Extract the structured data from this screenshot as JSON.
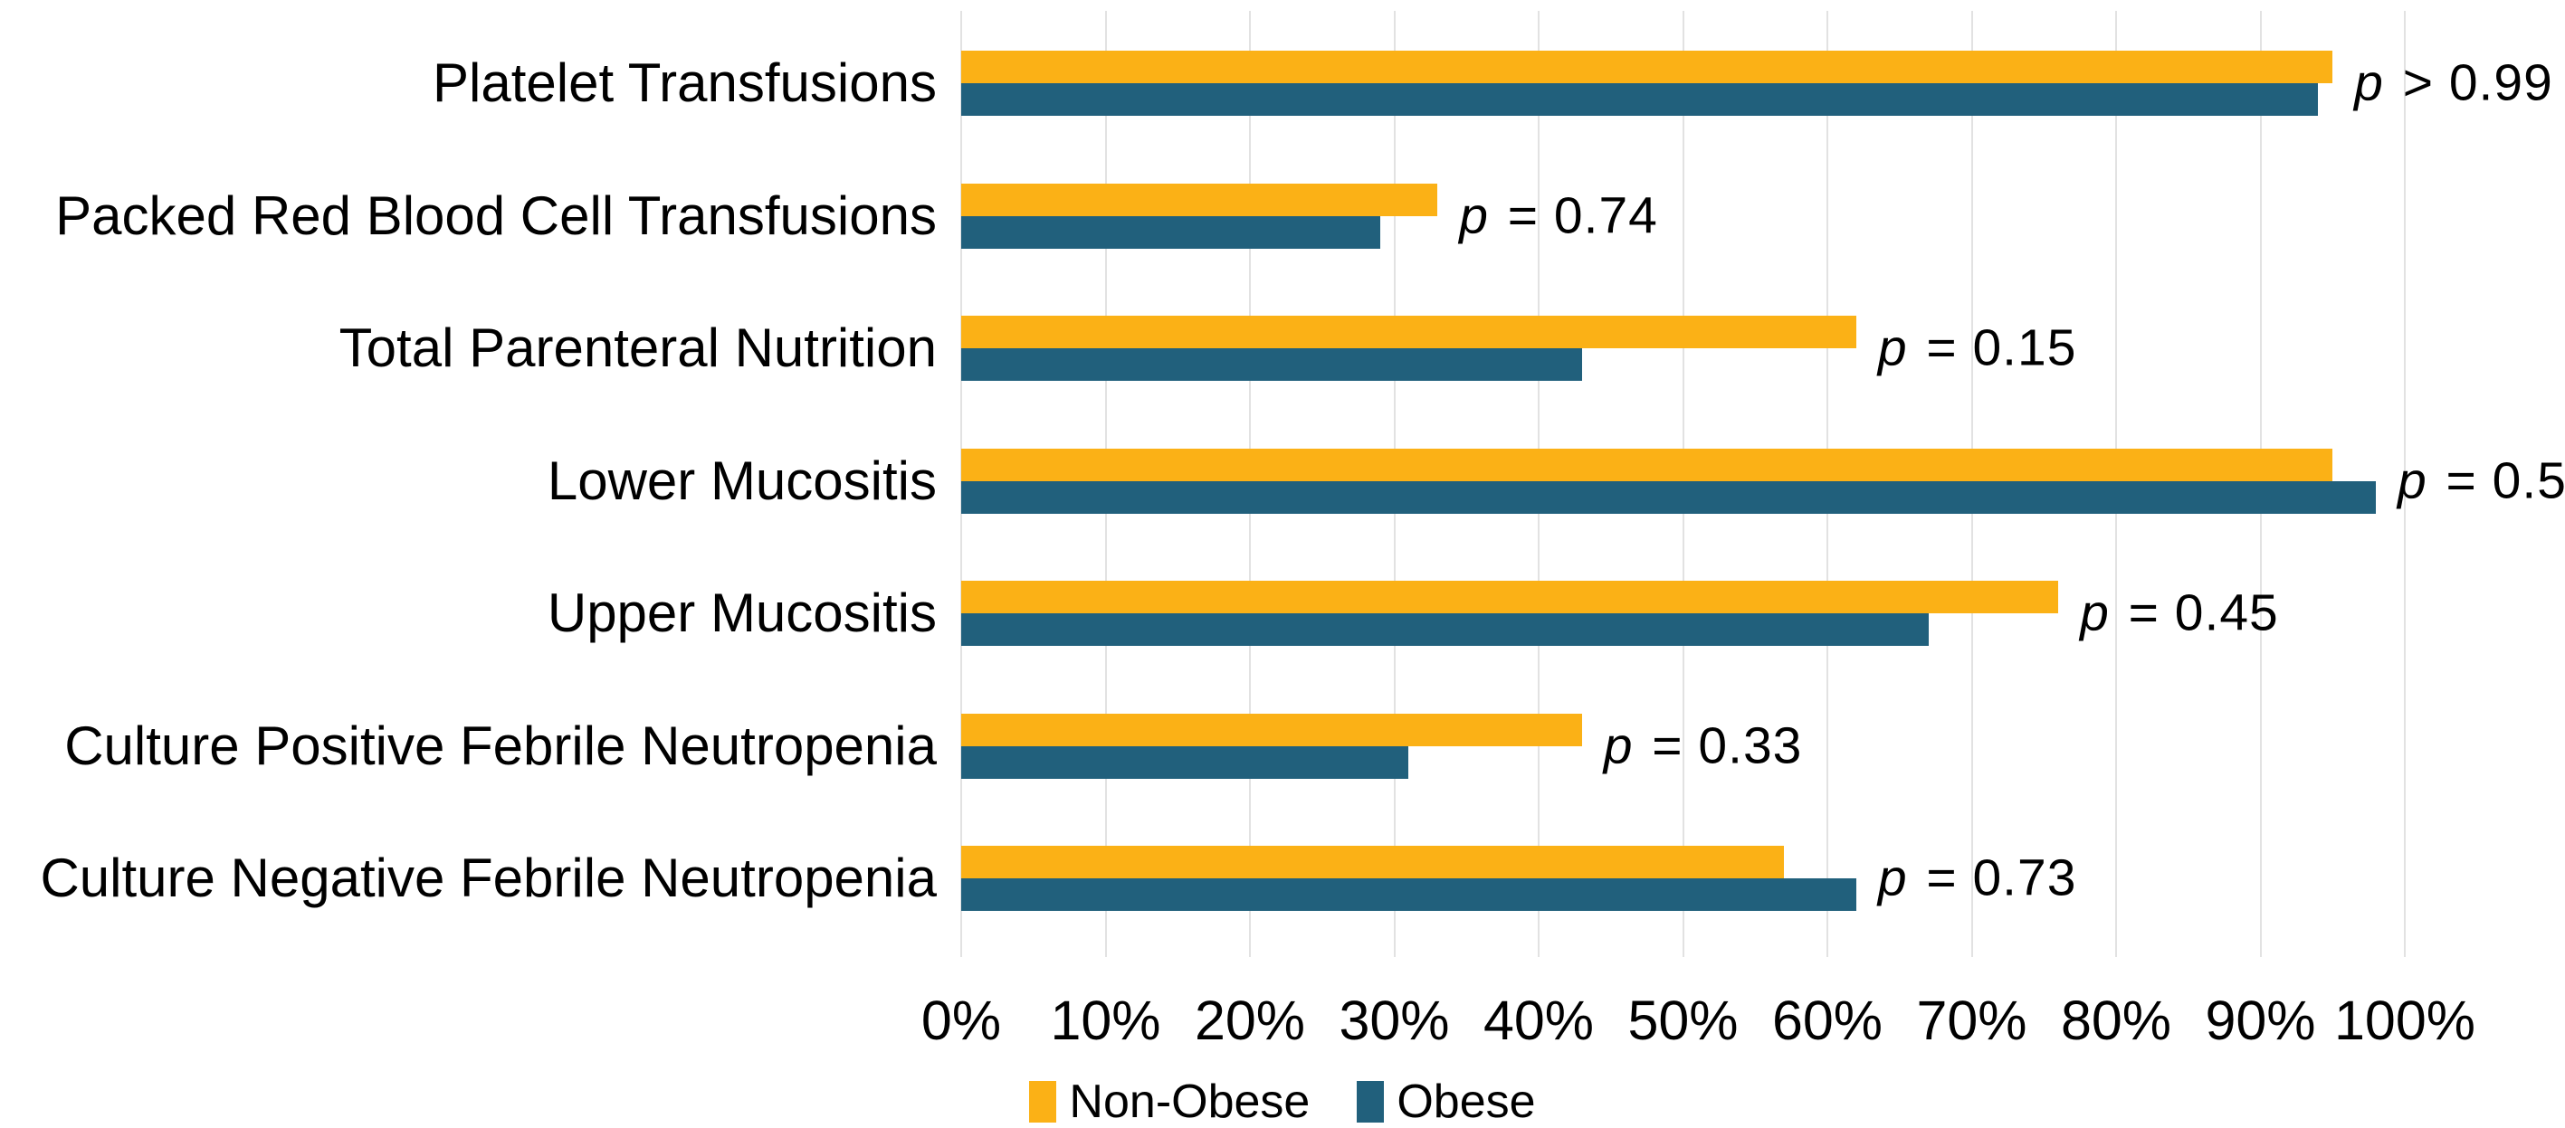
{
  "chart_data": {
    "type": "bar",
    "orientation": "horizontal",
    "title": "",
    "xlabel": "",
    "ylabel": "",
    "categories": [
      "Platelet Transfusions",
      "Packed Red Blood Cell Transfusions",
      "Total Parenteral Nutrition",
      "Lower Mucositis",
      "Upper Mucositis",
      "Culture Positive Febrile Neutropenia",
      "Culture Negative Febrile Neutropenia"
    ],
    "series": [
      {
        "name": "Non-Obese",
        "color": "#FBB116",
        "values": [
          95,
          33,
          62,
          95,
          76,
          43,
          57
        ]
      },
      {
        "name": "Obese",
        "color": "#21607C",
        "values": [
          94,
          29,
          43,
          98,
          67,
          31,
          62
        ]
      }
    ],
    "p_value_labels": [
      "p > 0.99",
      "p = 0.74",
      "p = 0.15",
      "p = 0.5",
      "p = 0.45",
      "p = 0.33",
      "p = 0.73"
    ],
    "x_ticks": [
      "0%",
      "10%",
      "20%",
      "30%",
      "40%",
      "50%",
      "60%",
      "70%",
      "80%",
      "90%",
      "100%"
    ],
    "xlim": [
      0,
      100
    ],
    "grid": "vertical-only",
    "gridline_color": "#E2E2E2",
    "text_color": "#000000",
    "legend_position": "bottom-center"
  }
}
